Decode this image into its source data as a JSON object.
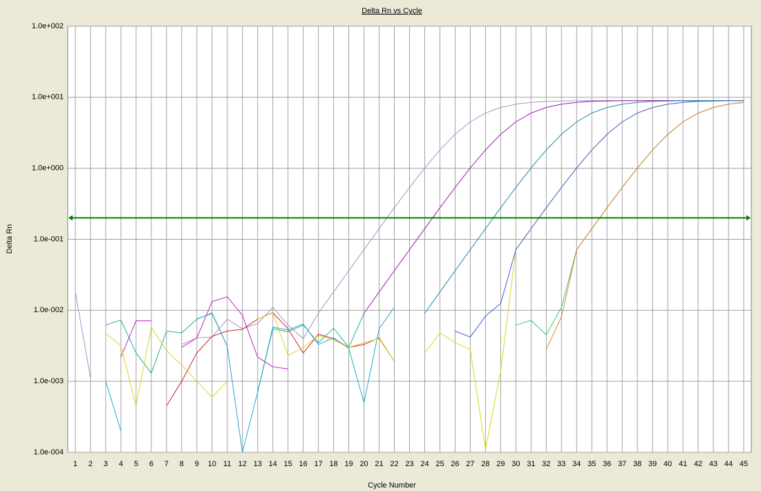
{
  "chart_data": {
    "type": "line",
    "title": "Delta Rn vs Cycle",
    "x_label": "Cycle Number",
    "y_label": "Delta Rn",
    "log_y": true,
    "grid": true,
    "ylim": [
      0.0001,
      100
    ],
    "xlim": [
      0.5,
      45.5
    ],
    "yticks": [
      {
        "value": 0.0001,
        "label": "1.0e-004"
      },
      {
        "value": 0.001,
        "label": "1.0e-003"
      },
      {
        "value": 0.01,
        "label": "1.0e-002"
      },
      {
        "value": 0.1,
        "label": "1.0e-001"
      },
      {
        "value": 1,
        "label": "1.0e+000"
      },
      {
        "value": 10,
        "label": "1.0e+001"
      },
      {
        "value": 100,
        "label": "1.0e+002"
      }
    ],
    "xticks": [
      1,
      2,
      3,
      4,
      5,
      6,
      7,
      8,
      9,
      10,
      11,
      12,
      13,
      14,
      15,
      16,
      17,
      18,
      19,
      20,
      21,
      22,
      23,
      24,
      25,
      26,
      27,
      28,
      29,
      30,
      31,
      32,
      33,
      34,
      35,
      36,
      37,
      38,
      39,
      40,
      41,
      42,
      43,
      44,
      45
    ],
    "x": [
      1,
      2,
      3,
      4,
      5,
      6,
      7,
      8,
      9,
      10,
      11,
      12,
      13,
      14,
      15,
      16,
      17,
      18,
      19,
      20,
      21,
      22,
      23,
      24,
      25,
      26,
      27,
      28,
      29,
      30,
      31,
      32,
      33,
      34,
      35,
      36,
      37,
      38,
      39,
      40,
      41,
      42,
      43,
      44,
      45
    ],
    "threshold": 0.2,
    "threshold_color": "#008000",
    "series": [
      {
        "color": "#a890c8",
        "values": [
          0.018,
          0.0011,
          null,
          null,
          null,
          null,
          null,
          0.0033,
          0.0041,
          0.0042,
          0.0075,
          0.0055,
          0.0065,
          0.011,
          0.0062,
          0.004,
          0.0091,
          0.0181,
          0.0361,
          0.0714,
          0.141,
          0.278,
          0.536,
          1.01,
          1.81,
          3.01,
          4.5,
          5.99,
          7.19,
          7.99,
          8.47,
          8.74,
          8.86,
          8.93,
          8.96,
          8.98,
          8.99,
          8.99,
          8.99,
          8.99,
          8.99,
          8.99,
          8.99,
          8.99,
          8.99
        ]
      },
      {
        "color": "#20b090",
        "values": [
          null,
          null,
          0.0062,
          0.0073,
          0.0025,
          0.0013,
          0.0051,
          0.0048,
          0.0075,
          0.0092,
          0.0031,
          null,
          0.0007,
          0.0055,
          0.005,
          0.0062,
          0.0035,
          0.0056,
          0.003,
          0.0091,
          0.0181,
          0.0361,
          0.0714,
          0.141,
          0.278,
          0.536,
          1.01,
          1.81,
          3.01,
          4.5,
          5.99,
          7.19,
          7.99,
          8.47,
          8.74,
          8.86,
          8.93,
          8.96,
          8.98,
          8.99,
          8.99,
          8.99,
          8.99,
          8.99,
          8.99
        ]
      },
      {
        "color": "#c020c0",
        "values": [
          null,
          null,
          null,
          0.0022,
          0.0071,
          0.0071,
          null,
          0.003,
          0.0041,
          0.0133,
          0.0155,
          0.0085,
          0.0022,
          0.0016,
          0.0015,
          null,
          null,
          null,
          null,
          0.0091,
          0.0181,
          0.0361,
          0.0714,
          0.141,
          0.278,
          0.536,
          1.01,
          1.81,
          3.01,
          4.5,
          5.99,
          7.19,
          7.99,
          8.47,
          8.74,
          8.86,
          8.93,
          8.96,
          8.98,
          8.99,
          8.99,
          8.99,
          8.99,
          8.99,
          8.99
        ]
      },
      {
        "color": "#d02020",
        "values": [
          null,
          null,
          null,
          null,
          null,
          null,
          0.00045,
          0.001,
          0.0025,
          0.0043,
          0.0051,
          0.0054,
          0.0075,
          0.0093,
          0.0055,
          0.0025,
          0.0046,
          0.004,
          0.003,
          0.0033,
          0.0041,
          0.0019,
          null,
          0.0091,
          0.0181,
          0.0361,
          0.0714,
          0.141,
          0.278,
          0.536,
          1.01,
          1.81,
          3.01,
          4.5,
          5.99,
          7.19,
          7.99,
          8.47,
          8.74,
          8.86,
          8.93,
          8.96,
          8.98,
          8.99,
          8.99
        ]
      },
      {
        "color": "#20a8d0",
        "values": [
          null,
          null,
          0.001,
          0.0002,
          null,
          null,
          null,
          null,
          0.0076,
          0.009,
          0.0031,
          0.0001,
          0.0007,
          0.0058,
          0.0053,
          0.0064,
          0.0033,
          0.0041,
          0.0029,
          0.0005,
          0.0055,
          0.011,
          null,
          0.0091,
          0.0181,
          0.0361,
          0.0714,
          0.141,
          0.278,
          0.536,
          1.01,
          1.81,
          3.01,
          4.5,
          5.99,
          7.19,
          7.99,
          8.47,
          8.74,
          8.86,
          8.93,
          8.96,
          8.98,
          8.99,
          8.99
        ]
      },
      {
        "color": "#d8d820",
        "values": [
          null,
          null,
          0.0047,
          0.0032,
          0.00045,
          0.0058,
          0.0027,
          0.0017,
          0.001,
          0.0006,
          0.001,
          null,
          0.0075,
          0.0092,
          0.0023,
          0.003,
          0.0044,
          0.0038,
          0.003,
          0.0035,
          0.004,
          0.0019,
          null,
          0.0025,
          0.0048,
          0.0035,
          0.0028,
          0.00011,
          0.0014,
          0.0714,
          0.141,
          0.278,
          0.536,
          1.01,
          1.81,
          3.01,
          4.5,
          5.99,
          7.19,
          7.99,
          8.47,
          8.74,
          8.86,
          8.93,
          8.96
        ]
      },
      {
        "color": "#4060d8",
        "values": [
          null,
          null,
          null,
          null,
          null,
          null,
          null,
          null,
          null,
          null,
          null,
          null,
          null,
          null,
          null,
          null,
          null,
          null,
          null,
          null,
          null,
          null,
          null,
          null,
          null,
          0.0051,
          0.0042,
          0.0083,
          0.0125,
          0.0714,
          0.141,
          0.278,
          0.536,
          1.01,
          1.81,
          3.01,
          4.5,
          5.99,
          7.19,
          7.99,
          8.47,
          8.74,
          8.86,
          8.93,
          8.96
        ]
      },
      {
        "color": "#30c870",
        "values": [
          null,
          null,
          null,
          null,
          null,
          null,
          null,
          null,
          null,
          null,
          null,
          null,
          null,
          null,
          null,
          null,
          null,
          null,
          null,
          null,
          null,
          null,
          null,
          null,
          null,
          null,
          null,
          null,
          null,
          0.0062,
          0.0072,
          0.0045,
          0.011,
          0.0714,
          0.141,
          0.278,
          0.536,
          1.01,
          1.81,
          3.01,
          4.5,
          5.99,
          7.19,
          7.99,
          8.47
        ]
      },
      {
        "color": "#e08030",
        "values": [
          null,
          null,
          null,
          null,
          null,
          null,
          null,
          null,
          null,
          null,
          null,
          null,
          null,
          null,
          null,
          null,
          null,
          null,
          null,
          null,
          null,
          null,
          null,
          null,
          null,
          null,
          null,
          null,
          null,
          null,
          null,
          0.0028,
          0.0081,
          0.0714,
          0.141,
          0.278,
          0.536,
          1.01,
          1.81,
          3.01,
          4.5,
          5.99,
          7.19,
          7.99,
          8.47
        ]
      }
    ]
  }
}
